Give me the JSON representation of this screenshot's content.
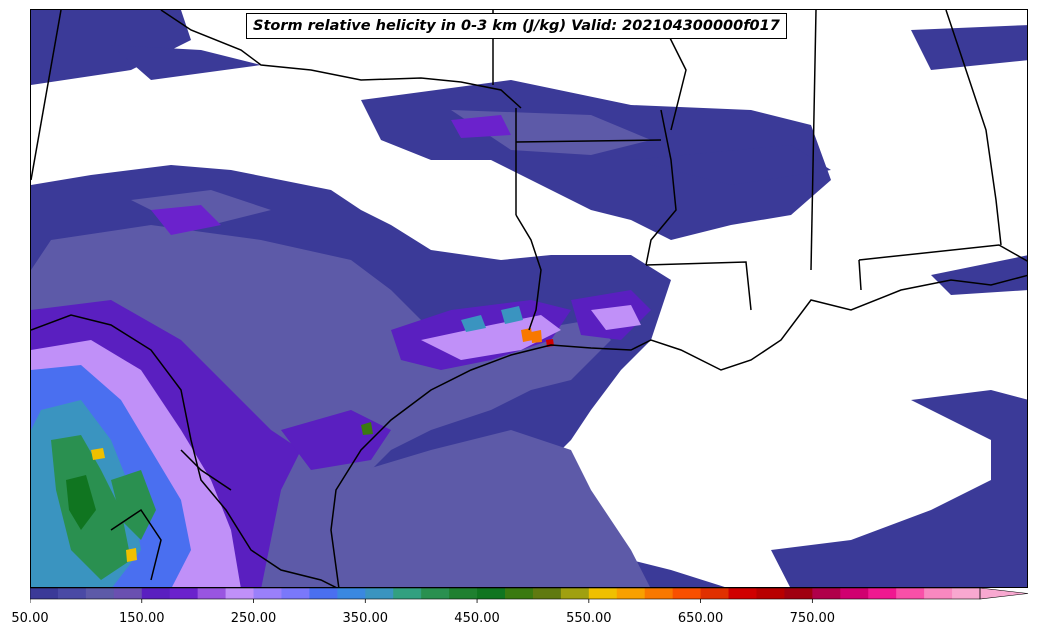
{
  "title": "Storm relative helicity in 0-3 km (J/kg) Valid: 202104300000f017",
  "colorbar": {
    "min": 50,
    "step": 25,
    "extend": "max",
    "tick_labels": [
      "50.00",
      "150.00",
      "250.00",
      "350.00",
      "450.00",
      "550.00",
      "650.00",
      "750.00"
    ],
    "colors": [
      "#3b3a98",
      "#4a4aa5",
      "#5d5aa8",
      "#6a50b0",
      "#5a1fc0",
      "#6b22cc",
      "#9955e0",
      "#c090f8",
      "#9a80fa",
      "#7a78fa",
      "#4a6ff0",
      "#3a88e0",
      "#3a94c0",
      "#32a080",
      "#2a9050",
      "#1f8030",
      "#107520",
      "#3a7a10",
      "#607a10",
      "#a0a010",
      "#f0c000",
      "#f8a000",
      "#f87800",
      "#f85000",
      "#e03000",
      "#d00000",
      "#b80000",
      "#a00010",
      "#b0004a",
      "#d00070",
      "#f01890",
      "#f850a8",
      "#f888c0",
      "#f8a8d0"
    ]
  }
}
